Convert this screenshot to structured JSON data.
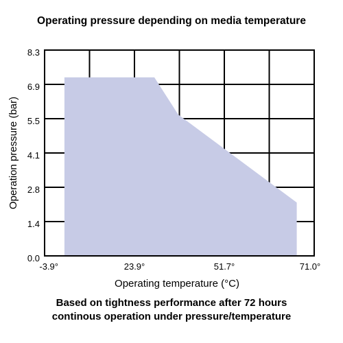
{
  "chart_data": {
    "type": "area",
    "title": "Operating pressure depending on media temperature",
    "xlabel": "Operating temperature (°C)",
    "ylabel": "Operation pressure (bar)",
    "x_ticks": [
      "-3.9°",
      "23.9°",
      "51.7°",
      "71.0°"
    ],
    "y_ticks": [
      "8.3",
      "6.9",
      "5.5",
      "4.1",
      "2.8",
      "1.4",
      "0.0"
    ],
    "xlim": [
      -9.3,
      71.0
    ],
    "ylim": [
      0.0,
      8.3
    ],
    "grid": true,
    "fill_color": "#c7cbe6",
    "series": [
      {
        "x": [
          -3.4,
          23.4,
          30.5,
          65.8,
          65.8,
          -3.4
        ],
        "y": [
          7.2,
          7.2,
          5.7,
          2.15,
          0.0,
          0.0
        ]
      }
    ],
    "caption_lines": [
      "Based on tightness performance after 72 hours",
      "continous operation under pressure/temperature"
    ]
  }
}
